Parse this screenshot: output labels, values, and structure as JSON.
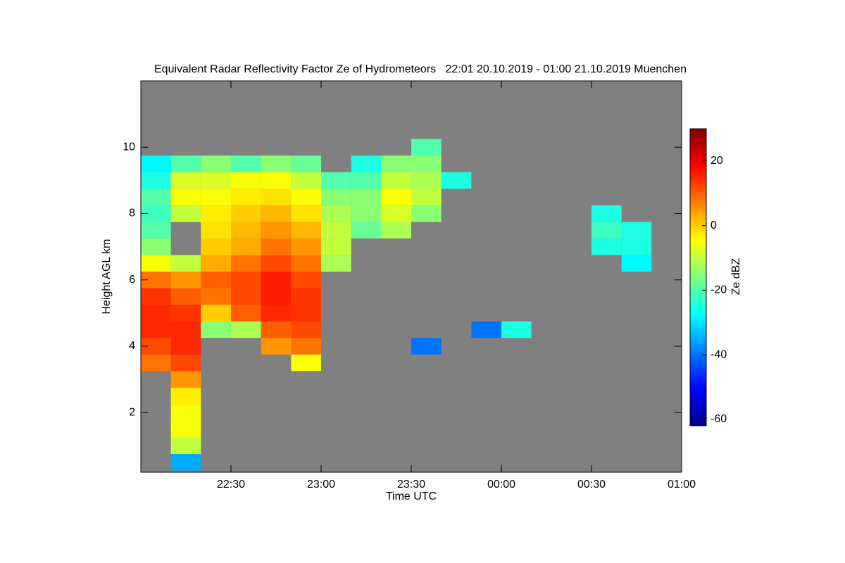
{
  "chart_data": {
    "type": "heatmap",
    "title": "Equivalent Radar Reflectivity Factor Ze of Hydrometeors   22:01 20.10.2019 - 01:00 21.10.2019 Muenchen",
    "xlabel": "Time UTC",
    "ylabel": "Height AGL km",
    "colorbar_label": "Ze dBZ",
    "background": "#808080",
    "xlim": [
      0,
      180
    ],
    "ylim": [
      0.2,
      12
    ],
    "xticks": [
      {
        "value": 30,
        "label": "22:30"
      },
      {
        "value": 60,
        "label": "23:00"
      },
      {
        "value": 90,
        "label": "23:30"
      },
      {
        "value": 120,
        "label": "00:00"
      },
      {
        "value": 150,
        "label": "00:30"
      },
      {
        "value": 180,
        "label": "01:00"
      }
    ],
    "yticks": [
      2,
      4,
      6,
      8,
      10
    ],
    "clim": [
      -62,
      30
    ],
    "cticks": [
      -60,
      -40,
      -20,
      0,
      20
    ],
    "x": [
      5,
      15,
      25,
      35,
      45,
      55,
      65,
      75,
      85,
      95,
      105,
      115,
      125,
      135,
      145,
      155,
      165,
      175
    ],
    "y": [
      0.5,
      1,
      1.5,
      2,
      2.5,
      3,
      3.5,
      4,
      4.5,
      5,
      5.5,
      6,
      6.5,
      7,
      7.5,
      8,
      8.5,
      9,
      9.5,
      10,
      10.5,
      11,
      11.5
    ],
    "z": [
      [
        null,
        null,
        null,
        null,
        null,
        null,
        8,
        12,
        15,
        15,
        14,
        8,
        -5,
        -15,
        -20,
        -22,
        -20,
        -25,
        -28,
        null,
        null,
        null,
        null
      ],
      [
        -35,
        -10,
        -5,
        -5,
        -3,
        5,
        12,
        15,
        15,
        14,
        10,
        5,
        -10,
        null,
        null,
        -10,
        -5,
        -8,
        -20,
        null,
        null,
        null,
        null
      ],
      [
        null,
        null,
        null,
        null,
        null,
        null,
        null,
        null,
        -15,
        0,
        8,
        10,
        3,
        0,
        -2,
        -3,
        -5,
        -8,
        -15,
        null,
        null,
        null,
        null
      ],
      [
        null,
        null,
        null,
        null,
        null,
        null,
        null,
        null,
        -12,
        10,
        12,
        12,
        8,
        3,
        2,
        0,
        -3,
        -5,
        -20,
        null,
        null,
        null,
        null
      ],
      [
        null,
        null,
        null,
        null,
        null,
        null,
        null,
        5,
        10,
        15,
        16,
        16,
        12,
        8,
        5,
        2,
        -2,
        -5,
        -15,
        null,
        null,
        null,
        null
      ],
      [
        null,
        null,
        null,
        null,
        null,
        null,
        -5,
        8,
        12,
        14,
        14,
        12,
        8,
        5,
        2,
        -2,
        -5,
        -10,
        -18,
        null,
        null,
        null,
        null
      ],
      [
        null,
        null,
        null,
        null,
        null,
        null,
        null,
        null,
        null,
        null,
        null,
        null,
        -12,
        -10,
        -10,
        -12,
        -15,
        -20,
        null,
        null,
        null,
        null,
        null
      ],
      [
        null,
        null,
        null,
        null,
        null,
        null,
        null,
        null,
        null,
        null,
        null,
        null,
        null,
        null,
        -18,
        -15,
        -15,
        -20,
        -25,
        null,
        null,
        null,
        null
      ],
      [
        null,
        null,
        null,
        null,
        null,
        null,
        null,
        null,
        null,
        null,
        null,
        null,
        null,
        null,
        -12,
        -8,
        -5,
        -10,
        -15,
        null,
        null,
        null,
        null
      ],
      [
        null,
        null,
        null,
        null,
        null,
        null,
        null,
        -40,
        null,
        null,
        null,
        null,
        null,
        null,
        null,
        -15,
        -10,
        -12,
        -15,
        -20,
        null,
        null,
        null
      ],
      [
        null,
        null,
        null,
        null,
        null,
        null,
        null,
        null,
        null,
        null,
        null,
        null,
        null,
        null,
        null,
        null,
        null,
        -25,
        null,
        null,
        null,
        null,
        null
      ],
      [
        null,
        null,
        null,
        null,
        null,
        null,
        null,
        null,
        -40,
        null,
        null,
        null,
        null,
        null,
        null,
        null,
        null,
        null,
        null,
        null,
        null,
        null,
        null
      ],
      [
        null,
        null,
        null,
        null,
        null,
        null,
        null,
        null,
        -25,
        null,
        null,
        null,
        null,
        null,
        null,
        null,
        null,
        null,
        null,
        null,
        null,
        null,
        null
      ],
      [
        null,
        null,
        null,
        null,
        null,
        null,
        null,
        null,
        null,
        null,
        null,
        null,
        null,
        null,
        null,
        null,
        null,
        null,
        null,
        null,
        null,
        null,
        null
      ],
      [
        null,
        null,
        null,
        null,
        null,
        null,
        null,
        null,
        null,
        null,
        null,
        null,
        null,
        null,
        null,
        null,
        null,
        null,
        null,
        null,
        null,
        null,
        null
      ],
      [
        null,
        null,
        null,
        null,
        null,
        null,
        null,
        null,
        null,
        null,
        null,
        null,
        null,
        -25,
        -22,
        -25,
        null,
        null,
        null,
        null,
        null,
        null,
        null
      ],
      [
        null,
        null,
        null,
        null,
        null,
        null,
        null,
        null,
        null,
        null,
        null,
        null,
        -28,
        -25,
        -25,
        null,
        null,
        null,
        null,
        null,
        null,
        null,
        null
      ],
      [
        null,
        null,
        null,
        null,
        null,
        null,
        null,
        null,
        null,
        null,
        null,
        null,
        null,
        null,
        null,
        null,
        null,
        null,
        null,
        null,
        null,
        null,
        null
      ]
    ]
  }
}
